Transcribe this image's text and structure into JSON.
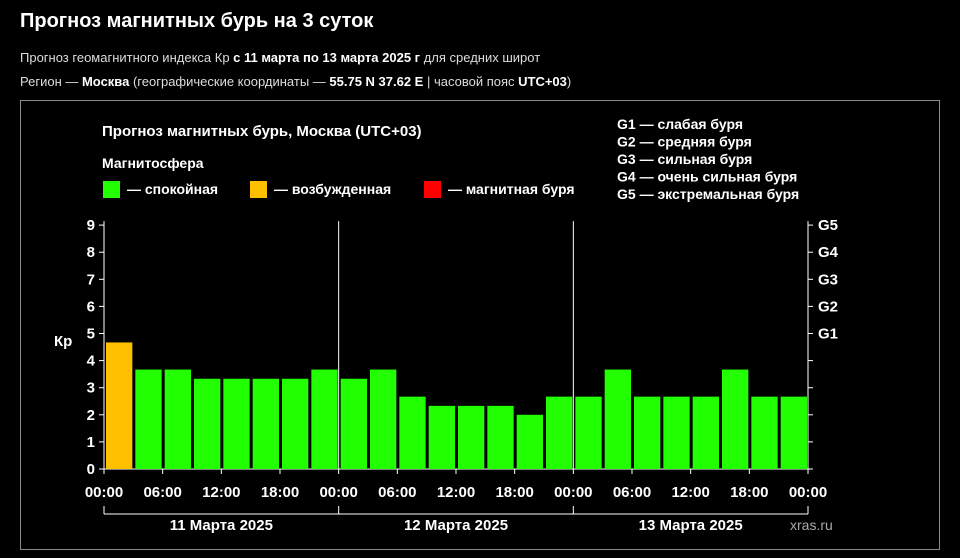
{
  "header": {
    "title": "Прогноз магнитных бурь на 3 суток",
    "line1_pre": "Прогноз геомагнитного индекса Кр ",
    "line1_bold": "с 11 марта по 13 марта 2025 г",
    "line1_post": " для средних широт",
    "line2_a": "Регион — ",
    "line2_region": "Москва",
    "line2_b": " (географические координаты — ",
    "line2_coords": "55.75 N 37.62 E",
    "line2_c": " | часовой пояс ",
    "line2_tz": "UTC+03",
    "line2_d": ")"
  },
  "colors": {
    "quiet": "#22ff00",
    "excited": "#ffc000",
    "storm": "#ff0000",
    "grid": "#ffffff",
    "background": "#000000"
  },
  "chart_data": {
    "type": "bar",
    "title": "Прогноз магнитных бурь, Москва (UTC+03)",
    "ylabel": "Кр",
    "ylim": [
      0,
      9
    ],
    "yticks": [
      "0",
      "1",
      "2",
      "3",
      "4",
      "5",
      "6",
      "7",
      "8",
      "9"
    ],
    "g_scale": [
      "G1",
      "G2",
      "G3",
      "G4",
      "G5"
    ],
    "legend_title": "Магнитосфера",
    "legend": [
      {
        "label": "— спокойная",
        "color": "#22ff00"
      },
      {
        "label": "— возбужденная",
        "color": "#ffc000"
      },
      {
        "label": "— магнитная буря",
        "color": "#ff0000"
      }
    ],
    "g_legend": [
      "G1 — слабая буря",
      "G2 — средняя буря",
      "G3 — сильная буря",
      "G4 — очень сильная буря",
      "G5 — экстремальная буря"
    ],
    "time_labels": [
      "00:00",
      "06:00",
      "12:00",
      "18:00",
      "00:00",
      "06:00",
      "12:00",
      "18:00",
      "00:00",
      "06:00",
      "12:00",
      "18:00",
      "00:00"
    ],
    "days": [
      "11 Марта 2025",
      "12 Марта 2025",
      "13 Марта 2025"
    ],
    "values": [
      4.67,
      3.67,
      3.67,
      3.33,
      3.33,
      3.33,
      3.33,
      3.67,
      3.33,
      3.67,
      2.67,
      2.33,
      2.33,
      2.33,
      2.0,
      2.67,
      2.67,
      3.67,
      2.67,
      2.67,
      2.67,
      3.67,
      2.67,
      2.67
    ],
    "status": [
      "excited",
      "quiet",
      "quiet",
      "quiet",
      "quiet",
      "quiet",
      "quiet",
      "quiet",
      "quiet",
      "quiet",
      "quiet",
      "quiet",
      "quiet",
      "quiet",
      "quiet",
      "quiet",
      "quiet",
      "quiet",
      "quiet",
      "quiet",
      "quiet",
      "quiet",
      "quiet",
      "quiet"
    ],
    "watermark": "xras.ru"
  }
}
